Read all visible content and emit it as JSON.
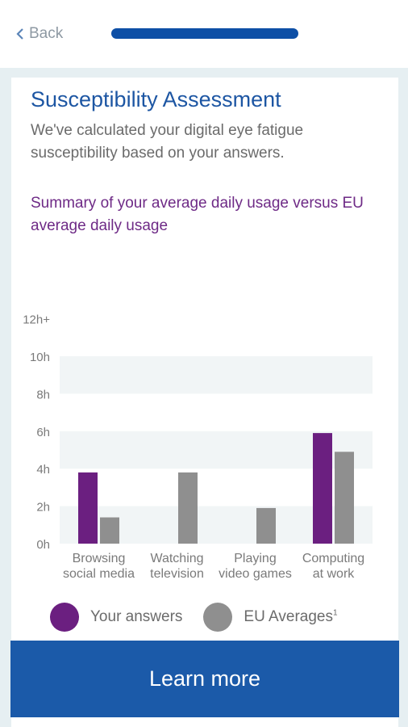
{
  "nav": {
    "back_label": "Back",
    "progress_fraction": 1.0
  },
  "page": {
    "title": "Susceptibility Assessment",
    "intro": "We've calculated your digital eye fatigue susceptibility based on your answers.",
    "summary": "Summary of your average daily usage versus EU average daily usage"
  },
  "chart_data": {
    "type": "bar",
    "categories": [
      [
        "Browsing",
        "social media"
      ],
      [
        "Watching",
        "television"
      ],
      [
        "Playing",
        "video games"
      ],
      [
        "Computing",
        "at work"
      ]
    ],
    "series": [
      {
        "name": "Your answers",
        "values": [
          3.8,
          0,
          0,
          5.9
        ],
        "color": "#6b1f80"
      },
      {
        "name": "EU Averages",
        "values": [
          1.4,
          3.8,
          1.9,
          4.9
        ],
        "color": "#8f8f8f"
      }
    ],
    "y_ticks": [
      "0h",
      "2h",
      "4h",
      "6h",
      "8h",
      "10h",
      "12h+"
    ],
    "y_tick_values": [
      0,
      2,
      4,
      6,
      8,
      10,
      12
    ],
    "ylim": [
      0,
      12
    ],
    "band_color": "#f1f5f6"
  },
  "legend": {
    "your_answers": "Your answers",
    "eu_averages": "EU Averages",
    "eu_footnote": "1"
  },
  "cta": {
    "label": "Learn more"
  },
  "colors": {
    "primary": "#1b5aa9",
    "purple": "#6b1f80",
    "grey": "#8f8f8f"
  }
}
